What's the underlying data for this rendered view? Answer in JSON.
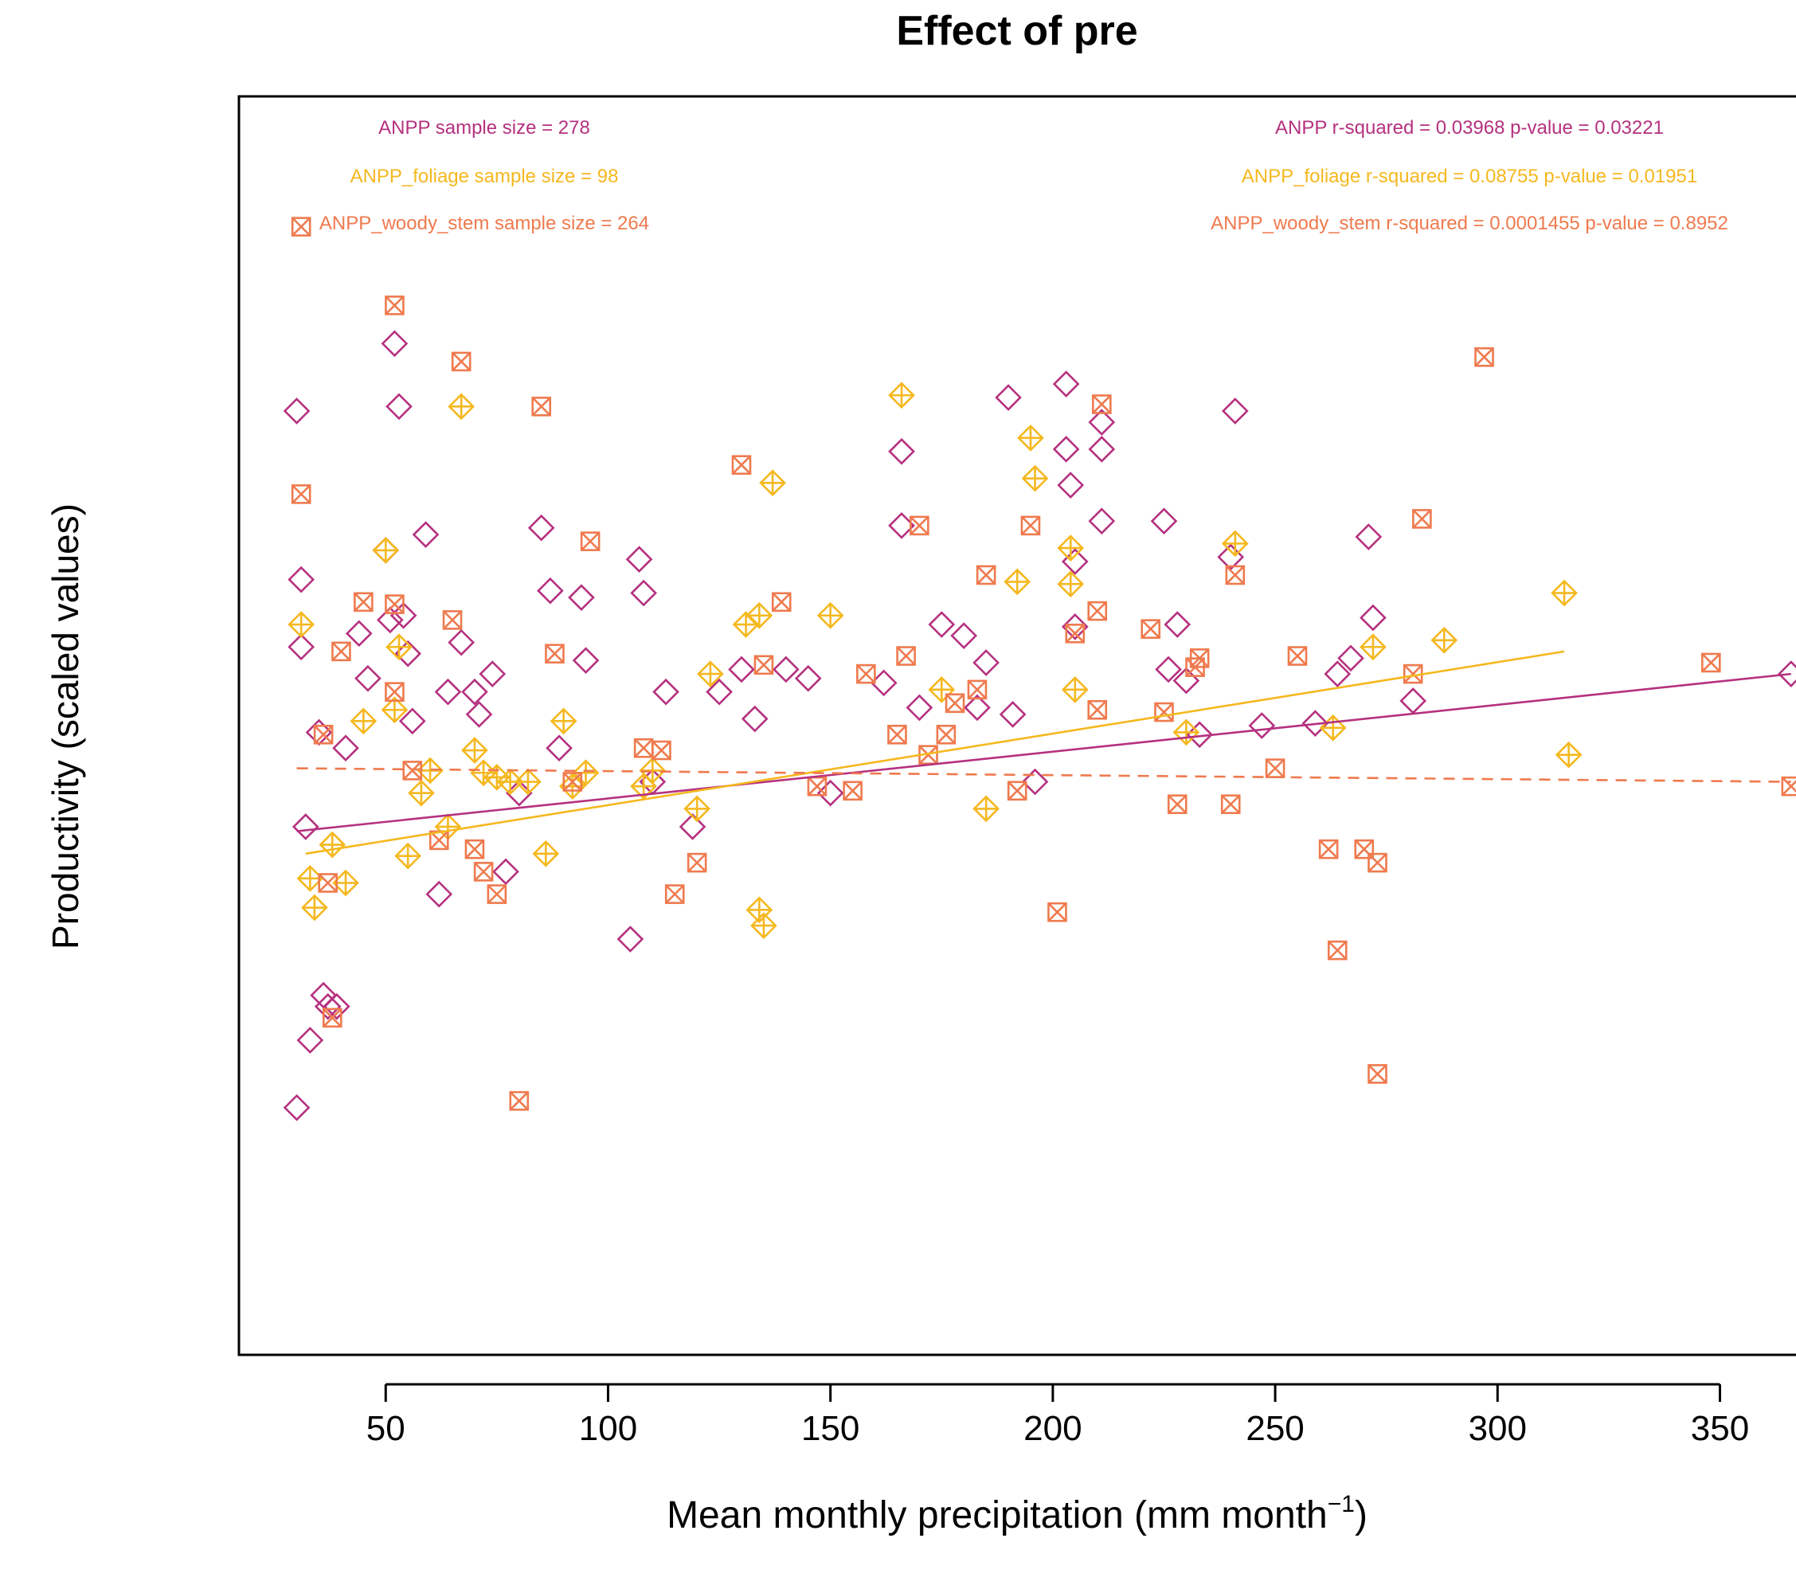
{
  "chart_data": {
    "type": "scatter",
    "title": "Effect of pre",
    "xlabel": "Mean monthly precipitation (mm month",
    "xlabel_superscript": "−1",
    "xlabel_suffix": ")",
    "ylabel": "Productivity (scaled values)",
    "xlim": [
      17,
      368
    ],
    "ylim": [
      -2.65,
      2.95
    ],
    "x_ticks": [
      50,
      100,
      150,
      200,
      250,
      300,
      350
    ],
    "show_y_ticks": false,
    "grid": false,
    "annotations": {
      "sample_sizes": [
        {
          "series": "ANPP",
          "text": "ANPP sample size = 278"
        },
        {
          "series": "ANPP_foliage",
          "text": "ANPP_foliage sample size = 98"
        },
        {
          "series": "ANPP_woody_stem",
          "text": "ANPP_woody_stem sample size = 264"
        }
      ],
      "fit_stats": [
        {
          "series": "ANPP",
          "text": "ANPP r-squared =  0.03968 p-value =  0.03221"
        },
        {
          "series": "ANPP_foliage",
          "text": "ANPP_foliage r-squared =  0.08755 p-value =  0.01951"
        },
        {
          "series": "ANPP_woody_stem",
          "text": "ANPP_woody_stem r-squared =  0.0001455 p-value =  0.8952"
        }
      ]
    },
    "series": [
      {
        "name": "ANPP",
        "color": "#b5317f",
        "marker": "diamond-open",
        "fit": {
          "x": [
            30,
            366
          ],
          "y": [
            -0.32,
            0.38
          ],
          "dashed": false
        },
        "points": [
          [
            30,
            1.55
          ],
          [
            30,
            -1.55
          ],
          [
            31,
            0.8
          ],
          [
            31,
            0.5
          ],
          [
            32,
            -0.3
          ],
          [
            33,
            -1.25
          ],
          [
            35,
            0.12
          ],
          [
            36,
            -1.05
          ],
          [
            37,
            -1.1
          ],
          [
            39,
            -1.1
          ],
          [
            41,
            0.05
          ],
          [
            44,
            0.56
          ],
          [
            46,
            0.36
          ],
          [
            50,
            0.93
          ],
          [
            51,
            0.62
          ],
          [
            52,
            1.85
          ],
          [
            53,
            1.57
          ],
          [
            54,
            0.64
          ],
          [
            55,
            0.47
          ],
          [
            56,
            0.17
          ],
          [
            59,
            1.0
          ],
          [
            62,
            -0.6
          ],
          [
            64,
            0.3
          ],
          [
            67,
            0.52
          ],
          [
            70,
            0.3
          ],
          [
            71,
            0.2
          ],
          [
            74,
            0.38
          ],
          [
            77,
            -0.5
          ],
          [
            80,
            -0.15
          ],
          [
            85,
            1.03
          ],
          [
            87,
            0.75
          ],
          [
            89,
            0.05
          ],
          [
            94,
            0.72
          ],
          [
            95,
            0.44
          ],
          [
            105,
            -0.8
          ],
          [
            107,
            0.89
          ],
          [
            108,
            0.74
          ],
          [
            110,
            -0.1
          ],
          [
            113,
            0.3
          ],
          [
            119,
            -0.3
          ],
          [
            125,
            0.3
          ],
          [
            130,
            0.4
          ],
          [
            133,
            0.18
          ],
          [
            140,
            0.4
          ],
          [
            145,
            0.36
          ],
          [
            150,
            -0.15
          ],
          [
            162,
            0.34
          ],
          [
            166,
            1.37
          ],
          [
            166,
            1.04
          ],
          [
            170,
            0.23
          ],
          [
            175,
            0.6
          ],
          [
            180,
            0.55
          ],
          [
            183,
            0.23
          ],
          [
            185,
            0.43
          ],
          [
            190,
            1.61
          ],
          [
            191,
            0.2
          ],
          [
            196,
            -0.1
          ],
          [
            203,
            1.67
          ],
          [
            203,
            1.38
          ],
          [
            204,
            1.22
          ],
          [
            205,
            0.88
          ],
          [
            205,
            0.59
          ],
          [
            211,
            1.5
          ],
          [
            211,
            1.38
          ],
          [
            211,
            1.06
          ],
          [
            225,
            1.06
          ],
          [
            226,
            0.4
          ],
          [
            228,
            0.6
          ],
          [
            230,
            0.35
          ],
          [
            233,
            0.11
          ],
          [
            240,
            0.9
          ],
          [
            241,
            1.55
          ],
          [
            247,
            0.15
          ],
          [
            259,
            0.16
          ],
          [
            264,
            0.38
          ],
          [
            267,
            0.45
          ],
          [
            271,
            0.99
          ],
          [
            272,
            0.63
          ],
          [
            281,
            0.26
          ],
          [
            366,
            0.38
          ]
        ]
      },
      {
        "name": "ANPP_foliage",
        "color": "#f5b81f",
        "marker": "diamond-plus",
        "fit": {
          "x": [
            32,
            315
          ],
          "y": [
            -0.42,
            0.48
          ],
          "dashed": false
        },
        "points": [
          [
            31,
            0.6
          ],
          [
            33,
            -0.53
          ],
          [
            34,
            -0.66
          ],
          [
            38,
            -0.38
          ],
          [
            41,
            -0.55
          ],
          [
            45,
            0.17
          ],
          [
            50,
            0.93
          ],
          [
            52,
            0.22
          ],
          [
            53,
            0.5
          ],
          [
            55,
            -0.43
          ],
          [
            58,
            -0.15
          ],
          [
            60,
            -0.05
          ],
          [
            64,
            -0.3
          ],
          [
            67,
            1.57
          ],
          [
            70,
            0.04
          ],
          [
            72,
            -0.06
          ],
          [
            75,
            -0.08
          ],
          [
            78,
            -0.1
          ],
          [
            82,
            -0.1
          ],
          [
            86,
            -0.42
          ],
          [
            90,
            0.17
          ],
          [
            92,
            -0.12
          ],
          [
            95,
            -0.06
          ],
          [
            108,
            -0.12
          ],
          [
            110,
            -0.05
          ],
          [
            120,
            -0.22
          ],
          [
            123,
            0.38
          ],
          [
            131,
            0.6
          ],
          [
            134,
            0.64
          ],
          [
            134,
            -0.67
          ],
          [
            135,
            -0.74
          ],
          [
            137,
            1.23
          ],
          [
            150,
            0.64
          ],
          [
            166,
            1.62
          ],
          [
            175,
            0.31
          ],
          [
            185,
            -0.22
          ],
          [
            192,
            0.79
          ],
          [
            195,
            1.43
          ],
          [
            196,
            1.25
          ],
          [
            204,
            0.94
          ],
          [
            204,
            0.78
          ],
          [
            205,
            0.31
          ],
          [
            230,
            0.12
          ],
          [
            241,
            0.96
          ],
          [
            263,
            0.14
          ],
          [
            272,
            0.5
          ],
          [
            288,
            0.53
          ],
          [
            315,
            0.74
          ],
          [
            316,
            0.02
          ]
        ]
      },
      {
        "name": "ANPP_woody_stem",
        "color": "#ef7a4e",
        "marker": "square-x",
        "fit": {
          "x": [
            30,
            366
          ],
          "y": [
            -0.04,
            -0.1
          ],
          "dashed": true
        },
        "points": [
          [
            31,
            2.37
          ],
          [
            31,
            1.18
          ],
          [
            36,
            0.11
          ],
          [
            37,
            -0.55
          ],
          [
            38,
            -1.15
          ],
          [
            40,
            0.48
          ],
          [
            45,
            0.7
          ],
          [
            52,
            2.02
          ],
          [
            52,
            0.69
          ],
          [
            52,
            0.3
          ],
          [
            56,
            -0.05
          ],
          [
            62,
            -0.36
          ],
          [
            65,
            0.62
          ],
          [
            67,
            1.77
          ],
          [
            70,
            -0.4
          ],
          [
            72,
            -0.5
          ],
          [
            75,
            -0.6
          ],
          [
            80,
            -1.52
          ],
          [
            85,
            1.57
          ],
          [
            88,
            0.47
          ],
          [
            92,
            -0.1
          ],
          [
            96,
            0.97
          ],
          [
            108,
            0.05
          ],
          [
            112,
            0.04
          ],
          [
            115,
            -0.6
          ],
          [
            120,
            -0.46
          ],
          [
            130,
            1.31
          ],
          [
            135,
            0.42
          ],
          [
            139,
            0.7
          ],
          [
            147,
            -0.12
          ],
          [
            155,
            -0.14
          ],
          [
            158,
            0.38
          ],
          [
            165,
            0.11
          ],
          [
            167,
            0.46
          ],
          [
            170,
            1.04
          ],
          [
            172,
            0.02
          ],
          [
            176,
            0.11
          ],
          [
            178,
            0.25
          ],
          [
            183,
            0.31
          ],
          [
            185,
            0.82
          ],
          [
            192,
            -0.14
          ],
          [
            195,
            1.04
          ],
          [
            201,
            -0.68
          ],
          [
            205,
            0.56
          ],
          [
            210,
            0.22
          ],
          [
            210,
            0.66
          ],
          [
            211,
            1.58
          ],
          [
            222,
            0.58
          ],
          [
            225,
            0.21
          ],
          [
            228,
            -0.2
          ],
          [
            232,
            0.41
          ],
          [
            233,
            0.45
          ],
          [
            240,
            -0.2
          ],
          [
            241,
            0.82
          ],
          [
            250,
            -0.04
          ],
          [
            255,
            0.46
          ],
          [
            262,
            -0.4
          ],
          [
            264,
            -0.85
          ],
          [
            270,
            -0.4
          ],
          [
            273,
            -1.4
          ],
          [
            273,
            -0.46
          ],
          [
            281,
            0.38
          ],
          [
            283,
            1.07
          ],
          [
            297,
            1.79
          ],
          [
            348,
            0.43
          ],
          [
            366,
            -0.12
          ]
        ]
      }
    ]
  }
}
